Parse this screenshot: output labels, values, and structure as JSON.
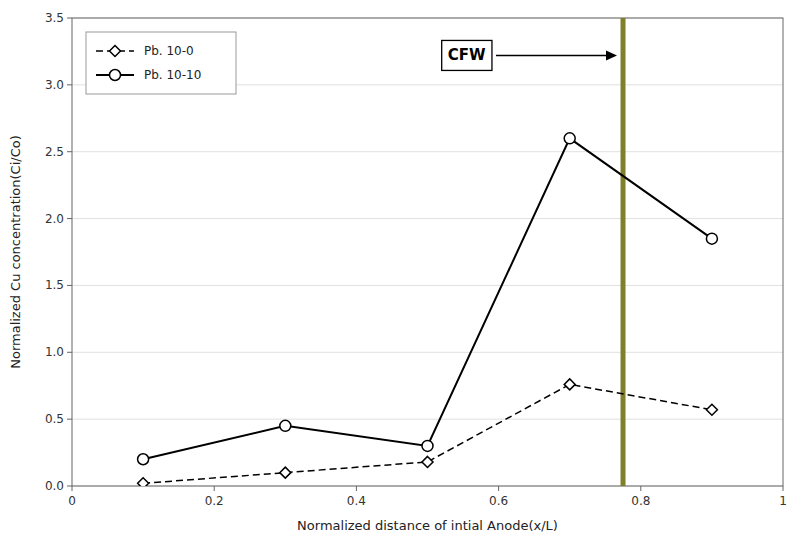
{
  "chart_data": {
    "type": "line",
    "x_label": "Normalized distance of intial Anode(x/L)",
    "y_label": "Normalized Cu concentration(Ci/Co)",
    "x": [
      0.1,
      0.3,
      0.5,
      0.7,
      0.9
    ],
    "series": [
      {
        "name": "Pb. 10-0",
        "values": [
          0.02,
          0.1,
          0.18,
          0.76,
          0.57
        ],
        "color": "#000000",
        "marker": "diamond",
        "line_style": "dashed"
      },
      {
        "name": "Pb. 10-10",
        "values": [
          0.2,
          0.45,
          0.3,
          2.6,
          1.85
        ],
        "color": "#000000",
        "marker": "circle",
        "line_style": "solid"
      }
    ],
    "xlim": [
      0,
      1
    ],
    "ylim": [
      0,
      3.5
    ],
    "xticks": [
      0,
      0.2,
      0.4,
      0.6,
      0.8,
      1
    ],
    "yticks": [
      {
        "value": 0.0,
        "label": "0.0"
      },
      0.5,
      {
        "value": 1.0,
        "label": "1.0"
      },
      1.5,
      {
        "value": 2.0,
        "label": "2.0"
      },
      2.5,
      {
        "value": 3.0,
        "label": "3.0"
      },
      3.5
    ],
    "reference_lines": [
      {
        "x": 0.775,
        "color": "#80802a"
      }
    ],
    "annotations": [
      {
        "text": "CFW",
        "x": 0.555,
        "y": 3.22
      }
    ],
    "grid": true,
    "legend": "upper left"
  }
}
